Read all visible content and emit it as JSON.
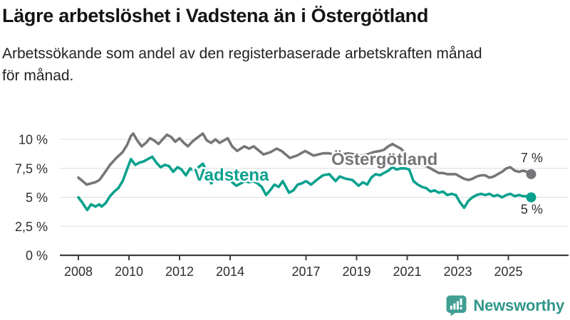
{
  "header": {
    "title": "Lägre arbetslöshet i Vadstena än i Östergötland",
    "subtitle_lines": [
      "Arbetssökande som andel av den registerbaserade arbetskraften månad",
      "för månad."
    ]
  },
  "colors": {
    "vadstena": "#0aa18e",
    "ostergotland": "#76767a",
    "grid": "#e3e3e3",
    "axis": "#3f3f41",
    "tick_text": "#2e2e2e",
    "end_label_text": "#2e2e2e",
    "logo": "#419e92",
    "brand_text": "#31968a"
  },
  "branding": {
    "name": "Newsworthy",
    "logo_icon": "bar-chart-speech-bubble"
  },
  "chart_data": {
    "type": "line",
    "title": "Lägre arbetslöshet i Vadstena än i Östergötland",
    "subtitle": "Arbetssökande som andel av den registerbaserade arbetskraften månad för månad.",
    "unit": "%",
    "x_axis": {
      "ticks": [
        2008,
        2010,
        2012,
        2014,
        2017,
        2019,
        2021,
        2023,
        2025
      ],
      "range": [
        2007.3,
        2027.4
      ],
      "grid": false
    },
    "y_axis": {
      "ticks": [
        0,
        2.5,
        5,
        7.5,
        10
      ],
      "tick_labels": [
        "0 %",
        "2,5 %",
        "5 %",
        "7,5 %",
        "10 %"
      ],
      "range": [
        0,
        10.8
      ],
      "grid": true
    },
    "legend_position": "inline-labels",
    "series": [
      {
        "name": "Östergötland",
        "color": "#76767a",
        "end_label": "7 %",
        "end_value": 7,
        "points": [
          [
            2008.0,
            6.7
          ],
          [
            2008.17,
            6.4
          ],
          [
            2008.33,
            6.1
          ],
          [
            2008.5,
            6.2
          ],
          [
            2008.67,
            6.3
          ],
          [
            2008.83,
            6.5
          ],
          [
            2009.0,
            7.0
          ],
          [
            2009.25,
            7.8
          ],
          [
            2009.5,
            8.4
          ],
          [
            2009.75,
            8.9
          ],
          [
            2009.92,
            9.5
          ],
          [
            2010.08,
            10.3
          ],
          [
            2010.17,
            10.5
          ],
          [
            2010.33,
            9.9
          ],
          [
            2010.5,
            9.4
          ],
          [
            2010.67,
            9.7
          ],
          [
            2010.83,
            10.1
          ],
          [
            2011.0,
            9.9
          ],
          [
            2011.17,
            9.6
          ],
          [
            2011.33,
            10.0
          ],
          [
            2011.5,
            10.4
          ],
          [
            2011.67,
            10.2
          ],
          [
            2011.83,
            9.8
          ],
          [
            2012.0,
            10.1
          ],
          [
            2012.17,
            9.7
          ],
          [
            2012.33,
            9.4
          ],
          [
            2012.5,
            9.8
          ],
          [
            2012.67,
            10.1
          ],
          [
            2012.92,
            10.5
          ],
          [
            2013.08,
            9.9
          ],
          [
            2013.25,
            9.7
          ],
          [
            2013.42,
            10.0
          ],
          [
            2013.58,
            9.7
          ],
          [
            2013.75,
            9.9
          ],
          [
            2013.9,
            10.1
          ],
          [
            2014.08,
            9.4
          ],
          [
            2014.28,
            9.0
          ],
          [
            2014.56,
            9.4
          ],
          [
            2014.75,
            9.2
          ],
          [
            2014.93,
            9.4
          ],
          [
            2015.1,
            9.1
          ],
          [
            2015.32,
            8.7
          ],
          [
            2015.6,
            8.9
          ],
          [
            2015.84,
            9.2
          ],
          [
            2016.03,
            9.0
          ],
          [
            2016.36,
            8.4
          ],
          [
            2016.64,
            8.6
          ],
          [
            2016.97,
            9.0
          ],
          [
            2017.3,
            8.6
          ],
          [
            2017.67,
            8.8
          ],
          [
            2017.92,
            8.8
          ],
          [
            2018.17,
            8.6
          ],
          [
            2018.42,
            8.7
          ],
          [
            2018.67,
            8.8
          ],
          [
            2018.92,
            8.7
          ],
          [
            2019.17,
            8.6
          ],
          [
            2019.42,
            8.7
          ],
          [
            2019.67,
            8.9
          ],
          [
            2019.92,
            9.0
          ],
          [
            2020.08,
            9.1
          ],
          [
            2020.25,
            9.4
          ],
          [
            2020.42,
            9.6
          ],
          [
            2020.58,
            9.4
          ],
          [
            2020.75,
            9.2
          ],
          [
            2020.92,
            8.8
          ],
          [
            2021.08,
            8.4
          ],
          [
            2021.25,
            8.2
          ],
          [
            2021.42,
            8.0
          ],
          [
            2021.58,
            7.8
          ],
          [
            2021.75,
            7.7
          ],
          [
            2021.92,
            7.5
          ],
          [
            2022.08,
            7.3
          ],
          [
            2022.25,
            7.1
          ],
          [
            2022.42,
            7.1
          ],
          [
            2022.58,
            7.0
          ],
          [
            2022.75,
            7.0
          ],
          [
            2022.92,
            7.0
          ],
          [
            2023.08,
            6.8
          ],
          [
            2023.25,
            6.6
          ],
          [
            2023.42,
            6.5
          ],
          [
            2023.58,
            6.6
          ],
          [
            2023.75,
            6.8
          ],
          [
            2023.92,
            6.9
          ],
          [
            2024.08,
            6.9
          ],
          [
            2024.25,
            6.7
          ],
          [
            2024.42,
            6.8
          ],
          [
            2024.58,
            7.0
          ],
          [
            2024.75,
            7.2
          ],
          [
            2024.92,
            7.5
          ],
          [
            2025.08,
            7.6
          ],
          [
            2025.25,
            7.3
          ],
          [
            2025.42,
            7.2
          ],
          [
            2025.58,
            7.3
          ],
          [
            2025.75,
            7.2
          ],
          [
            2025.9,
            7.0
          ]
        ]
      },
      {
        "name": "Vadstena",
        "color": "#0aa18e",
        "end_label": "5 %",
        "end_value": 5,
        "points": [
          [
            2008.0,
            5.0
          ],
          [
            2008.17,
            4.5
          ],
          [
            2008.35,
            3.9
          ],
          [
            2008.5,
            4.4
          ],
          [
            2008.67,
            4.2
          ],
          [
            2008.83,
            4.4
          ],
          [
            2008.92,
            4.2
          ],
          [
            2009.08,
            4.5
          ],
          [
            2009.25,
            5.1
          ],
          [
            2009.42,
            5.5
          ],
          [
            2009.58,
            5.8
          ],
          [
            2009.75,
            6.4
          ],
          [
            2009.92,
            7.4
          ],
          [
            2010.08,
            8.3
          ],
          [
            2010.25,
            7.8
          ],
          [
            2010.42,
            8.0
          ],
          [
            2010.58,
            8.1
          ],
          [
            2010.75,
            8.3
          ],
          [
            2010.92,
            8.5
          ],
          [
            2011.08,
            8.0
          ],
          [
            2011.25,
            7.6
          ],
          [
            2011.42,
            7.8
          ],
          [
            2011.58,
            7.7
          ],
          [
            2011.75,
            7.2
          ],
          [
            2011.92,
            7.6
          ],
          [
            2012.08,
            7.4
          ],
          [
            2012.25,
            6.9
          ],
          [
            2012.42,
            7.5
          ],
          [
            2012.58,
            7.3
          ],
          [
            2012.75,
            7.6
          ],
          [
            2012.92,
            7.9
          ],
          [
            2013.08,
            7.2
          ],
          [
            2013.25,
            6.2
          ],
          [
            2013.42,
            6.6
          ],
          [
            2013.58,
            6.8
          ],
          [
            2013.75,
            6.5
          ],
          [
            2013.92,
            6.6
          ],
          [
            2014.08,
            6.3
          ],
          [
            2014.25,
            6.0
          ],
          [
            2014.42,
            6.2
          ],
          [
            2014.58,
            6.4
          ],
          [
            2014.75,
            6.3
          ],
          [
            2014.92,
            6.4
          ],
          [
            2015.08,
            6.2
          ],
          [
            2015.25,
            5.9
          ],
          [
            2015.42,
            5.2
          ],
          [
            2015.58,
            5.6
          ],
          [
            2015.75,
            6.1
          ],
          [
            2015.92,
            5.9
          ],
          [
            2016.08,
            6.4
          ],
          [
            2016.33,
            5.4
          ],
          [
            2016.5,
            5.6
          ],
          [
            2016.67,
            6.1
          ],
          [
            2016.83,
            6.2
          ],
          [
            2017.0,
            6.4
          ],
          [
            2017.2,
            6.1
          ],
          [
            2017.42,
            6.5
          ],
          [
            2017.67,
            6.9
          ],
          [
            2017.92,
            7.0
          ],
          [
            2018.17,
            6.4
          ],
          [
            2018.33,
            6.8
          ],
          [
            2018.58,
            6.6
          ],
          [
            2018.83,
            6.5
          ],
          [
            2019.08,
            6.0
          ],
          [
            2019.25,
            6.3
          ],
          [
            2019.42,
            6.1
          ],
          [
            2019.58,
            6.7
          ],
          [
            2019.75,
            7.0
          ],
          [
            2019.92,
            6.9
          ],
          [
            2020.08,
            7.1
          ],
          [
            2020.25,
            7.3
          ],
          [
            2020.42,
            7.6
          ],
          [
            2020.58,
            7.4
          ],
          [
            2020.75,
            7.5
          ],
          [
            2020.92,
            7.5
          ],
          [
            2021.08,
            7.4
          ],
          [
            2021.25,
            6.4
          ],
          [
            2021.42,
            6.1
          ],
          [
            2021.58,
            5.9
          ],
          [
            2021.75,
            5.8
          ],
          [
            2021.92,
            5.5
          ],
          [
            2022.08,
            5.6
          ],
          [
            2022.25,
            5.4
          ],
          [
            2022.42,
            5.5
          ],
          [
            2022.58,
            5.2
          ],
          [
            2022.75,
            5.3
          ],
          [
            2022.92,
            5.2
          ],
          [
            2023.08,
            4.6
          ],
          [
            2023.25,
            4.1
          ],
          [
            2023.42,
            4.7
          ],
          [
            2023.58,
            5.0
          ],
          [
            2023.75,
            5.2
          ],
          [
            2023.92,
            5.3
          ],
          [
            2024.08,
            5.2
          ],
          [
            2024.25,
            5.3
          ],
          [
            2024.42,
            5.1
          ],
          [
            2024.58,
            5.2
          ],
          [
            2024.75,
            5.0
          ],
          [
            2024.92,
            5.2
          ],
          [
            2025.08,
            5.3
          ],
          [
            2025.25,
            5.1
          ],
          [
            2025.42,
            5.2
          ],
          [
            2025.58,
            5.1
          ],
          [
            2025.75,
            5.1
          ],
          [
            2025.9,
            5.0
          ]
        ]
      }
    ]
  }
}
